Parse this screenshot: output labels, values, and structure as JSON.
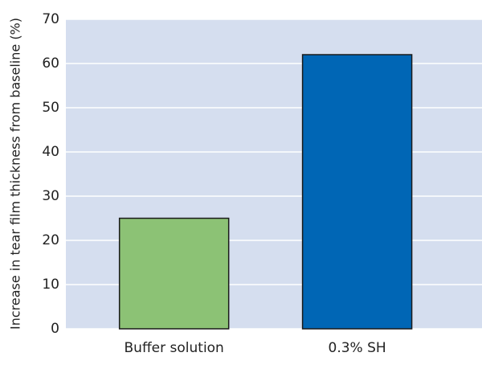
{
  "chart_data": {
    "type": "bar",
    "y_label": "Increase in tear film thickness from baseline (%)",
    "categories": [
      "Buffer solution",
      "0.3% SH"
    ],
    "values": [
      25,
      62
    ],
    "colors": [
      "#8cc275",
      "#0066b5"
    ],
    "ylim": [
      0,
      70
    ],
    "yticks": [
      0,
      10,
      20,
      30,
      40,
      50,
      60,
      70
    ],
    "grid": true
  }
}
